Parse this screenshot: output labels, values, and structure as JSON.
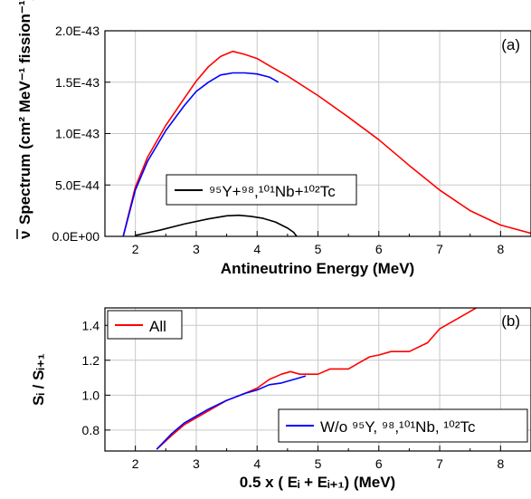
{
  "chart_data": [
    {
      "type": "line",
      "panel_label": "(a)",
      "xlabel": "Antineutrino Energy (MeV)",
      "ylabel": "Spectrum (cm² MeV⁻¹ fission⁻¹)",
      "ylabel_symbol": "ν",
      "xlim": [
        1.5,
        8.5
      ],
      "ylim": [
        0,
        2e-43
      ],
      "xticks": [
        "2",
        "3",
        "4",
        "5",
        "6",
        "7",
        "8"
      ],
      "yticks": [
        "0.0E+00",
        "5.0E-44",
        "1.0E-43",
        "1.5E-43",
        "2.0E-43"
      ],
      "grid": true,
      "legend": {
        "text": "⁹⁵Y+⁹⁸,¹⁰¹Nb+¹⁰²Tc",
        "placement": "center-left"
      },
      "series": [
        {
          "color": "#ff0000",
          "x": [
            1.8,
            2.0,
            2.2,
            2.5,
            2.8,
            3.0,
            3.2,
            3.4,
            3.6,
            3.8,
            4.0,
            4.2,
            4.5,
            5.0,
            5.5,
            6.0,
            6.5,
            7.0,
            7.5,
            8.0,
            8.5
          ],
          "y": [
            0,
            4.8e-44,
            7.7e-44,
            1.08e-43,
            1.34e-43,
            1.51e-43,
            1.65e-43,
            1.75e-43,
            1.8e-43,
            1.77e-43,
            1.73e-43,
            1.66e-43,
            1.56e-43,
            1.37e-43,
            1.16e-43,
            9.4e-44,
            6.9e-44,
            4.5e-44,
            2.5e-44,
            1.1e-44,
            3e-45
          ]
        },
        {
          "color": "#0000ff",
          "x": [
            1.8,
            2.0,
            2.2,
            2.5,
            2.8,
            3.0,
            3.2,
            3.4,
            3.6,
            3.8,
            4.0,
            4.2,
            4.35
          ],
          "y": [
            0,
            4.5e-44,
            7.3e-44,
            1.03e-43,
            1.27e-43,
            1.41e-43,
            1.5e-43,
            1.57e-43,
            1.59e-43,
            1.59e-43,
            1.58e-43,
            1.55e-43,
            1.5e-43
          ]
        },
        {
          "name": "⁹⁵Y+⁹⁸,¹⁰¹Nb+¹⁰²Tc",
          "color": "#000000",
          "x": [
            2.0,
            2.4,
            2.8,
            3.2,
            3.5,
            3.7,
            3.9,
            4.1,
            4.3,
            4.5,
            4.6,
            4.65
          ],
          "y": [
            1e-45,
            6e-45,
            1.2e-44,
            1.7e-44,
            2e-44,
            2.05e-44,
            1.95e-44,
            1.75e-44,
            1.4e-44,
            8e-45,
            4e-45,
            0
          ]
        }
      ]
    },
    {
      "type": "line",
      "panel_label": "(b)",
      "xlabel": "0.5 x ( Eᵢ + Eᵢ₊₁) (MeV)",
      "ylabel": "Sᵢ / Sᵢ₊₁",
      "xlim": [
        1.5,
        8.5
      ],
      "ylim": [
        0.68,
        1.5
      ],
      "xticks": [
        "2",
        "3",
        "4",
        "5",
        "6",
        "7",
        "8"
      ],
      "yticks": [
        "0.8",
        "1.0",
        "1.2",
        "1.4"
      ],
      "grid": true,
      "legends": [
        {
          "text": "All",
          "color": "#ff0000",
          "placement": "top-left"
        },
        {
          "text": "W/o ⁹⁵Y, ⁹⁸,¹⁰¹Nb, ¹⁰²Tc",
          "color": "#0000ff",
          "placement": "bottom-right"
        }
      ],
      "series": [
        {
          "name": "All",
          "color": "#ff0000",
          "x": [
            2.35,
            2.6,
            2.8,
            3.0,
            3.2,
            3.5,
            3.8,
            4.0,
            4.2,
            4.4,
            4.55,
            4.7,
            5.0,
            5.2,
            5.5,
            5.7,
            5.85,
            6.0,
            6.2,
            6.5,
            6.8,
            7.0,
            7.3,
            7.6
          ],
          "y": [
            0.69,
            0.77,
            0.83,
            0.87,
            0.91,
            0.97,
            1.01,
            1.04,
            1.09,
            1.12,
            1.135,
            1.12,
            1.12,
            1.15,
            1.15,
            1.19,
            1.22,
            1.23,
            1.25,
            1.25,
            1.3,
            1.38,
            1.44,
            1.5
          ]
        },
        {
          "name": "W/o ⁹⁵Y, ⁹⁸,¹⁰¹Nb, ¹⁰²Tc",
          "color": "#0000ff",
          "x": [
            2.35,
            2.6,
            2.8,
            3.0,
            3.2,
            3.5,
            3.8,
            4.0,
            4.2,
            4.4,
            4.55,
            4.7,
            4.8
          ],
          "y": [
            0.69,
            0.78,
            0.84,
            0.88,
            0.92,
            0.97,
            1.01,
            1.03,
            1.06,
            1.07,
            1.085,
            1.1,
            1.11
          ]
        }
      ]
    }
  ]
}
